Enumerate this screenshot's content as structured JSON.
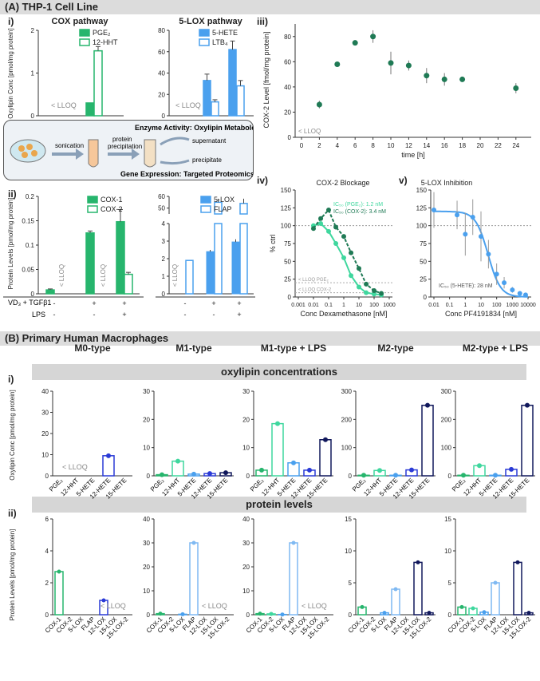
{
  "colors": {
    "green": "#27b56d",
    "mint": "#3fd79e",
    "blue": "#4aa0ee",
    "lblue": "#7fb9f2",
    "dblue": "#2a3ad6",
    "navy": "#11185c",
    "teal": "#1f7a55",
    "gray": "#999999"
  },
  "sectionA": {
    "title": "(A) THP-1 Cell Line",
    "panel_i": "i)",
    "panel_ii": "ii)",
    "panel_iii": "iii)",
    "panel_iv": "iv)",
    "panel_v": "v)"
  },
  "sectionB": {
    "title": "(B) Primary Human Macrophages",
    "panel_i": "i)",
    "panel_ii": "ii)",
    "band_oxy": "oxylipin concentrations",
    "band_prot": "protein levels"
  },
  "workflow": {
    "title1": "Enzyme Activity: Oxylipin Metabolomics",
    "title2": "Gene Expression: Targeted Proteomics",
    "step1": "sonication",
    "step2a": "protein",
    "step2b": "precipitation",
    "supernatant": "supernatant",
    "precipitate": "precipitate"
  },
  "treatment": {
    "vd3": "VD₃ + TGFβ1",
    "lps": "LPS",
    "vd3_vals": [
      "-",
      "+",
      "+"
    ],
    "lps_vals": [
      "-",
      "-",
      "+"
    ],
    "vd3_vals2": [
      "-",
      "+",
      "+"
    ],
    "lps_vals2": [
      "-",
      "-",
      "+"
    ]
  },
  "chart_data": [
    {
      "id": "Ai_cox",
      "type": "bar",
      "title": "COX pathway",
      "ylabel": "Oxylipin Conc [pmol/mg protein]",
      "ylim": [
        0,
        2
      ],
      "yticks": [
        0,
        1,
        2
      ],
      "series": [
        {
          "name": "PGE₂",
          "values": [
            0,
            0.3
          ]
        },
        {
          "name": "12-HHT",
          "values": [
            0,
            1.52
          ]
        }
      ],
      "errors": [
        [
          0,
          0
        ],
        [
          0,
          0.1
        ]
      ],
      "groups": [
        "-",
        "+"
      ],
      "lloq": "< LLOQ"
    },
    {
      "id": "Ai_lox",
      "type": "bar",
      "title": "5-LOX pathway",
      "ylim": [
        0,
        80
      ],
      "yticks": [
        0,
        20,
        40,
        60,
        80
      ],
      "series": [
        {
          "name": "5-HETE",
          "values": [
            0,
            33,
            62
          ]
        },
        {
          "name": "LTB₄",
          "values": [
            0,
            13,
            28
          ]
        }
      ],
      "errors": [
        [
          0,
          6,
          8
        ],
        [
          0,
          2,
          5
        ]
      ],
      "lloq": "< LLOQ"
    },
    {
      "id": "Aii_cox",
      "type": "bar",
      "ylabel": "Protein Levels [pmol/mg protein]",
      "ylim": [
        0,
        0.2
      ],
      "yticks": [
        0,
        0.05,
        0.1,
        0.15,
        0.2
      ],
      "series": [
        {
          "name": "COX-1",
          "values": [
            0.008,
            0.125,
            0.148
          ]
        },
        {
          "name": "COX-2",
          "values": [
            0,
            0,
            0.04
          ]
        }
      ],
      "errors": [
        [
          0.002,
          0.004,
          0.025
        ],
        [
          0,
          0,
          0.004
        ]
      ],
      "lloq": "< LLOQ"
    },
    {
      "id": "Aii_lox",
      "type": "bar",
      "ylim": [
        0,
        60
      ],
      "yticks_low": [
        0,
        1,
        2,
        3,
        4
      ],
      "yticks_high": [
        50,
        60
      ],
      "series": [
        {
          "name": "5-LOX",
          "values": [
            0,
            2.4,
            2.95
          ]
        },
        {
          "name": "FLAP",
          "values": [
            1.9,
            55,
            54
          ]
        }
      ],
      "errors": [
        [
          0,
          0.1,
          0.15
        ],
        [
          0.2,
          3,
          4
        ]
      ],
      "lloq": "< LLOQ"
    },
    {
      "id": "Aiii",
      "type": "scatter",
      "ylabel": "COX-2 Level [fmol/mg protein]",
      "xlabel": "time [h]",
      "xlim": [
        0,
        25
      ],
      "ylim": [
        0,
        90
      ],
      "xticks": [
        0,
        2,
        4,
        6,
        8,
        10,
        12,
        14,
        16,
        18,
        20,
        22,
        24
      ],
      "yticks": [
        0,
        20,
        40,
        60,
        80
      ],
      "x": [
        2,
        4,
        6,
        8,
        10,
        12,
        14,
        16,
        18,
        24
      ],
      "y": [
        26,
        58,
        75,
        80,
        59,
        57,
        49,
        46,
        46,
        39
      ],
      "err": [
        3,
        2,
        2,
        5,
        9,
        4,
        6,
        5,
        0,
        4
      ],
      "lloq": "< LLOQ"
    },
    {
      "id": "Aiv",
      "type": "line",
      "title": "COX-2 Blockage",
      "ylabel": "% ctrl",
      "xlabel": "Conc Dexamethasone [nM]",
      "xlim": [
        0.001,
        1000
      ],
      "ylim": [
        0,
        150
      ],
      "yticks": [
        0,
        25,
        50,
        75,
        100,
        125,
        150
      ],
      "xticks": [
        "0.001",
        "0.01",
        "0.1",
        "1",
        "10",
        "100",
        "1000"
      ],
      "ic50_pge2": "IC₅₀ (PGE₂): 1.2 nM",
      "ic50_cox2": "IC₅₀ (COX-2): 3.4 nM",
      "lloq_pge2": "< LLOQ PGE₂",
      "lloq_cox2": "< LLOQ COX-2",
      "series": [
        {
          "name": "PGE2",
          "x": [
            0.01,
            0.03,
            0.1,
            0.3,
            1,
            3,
            10,
            30,
            100,
            300
          ],
          "y": [
            100,
            103,
            92,
            75,
            55,
            30,
            14,
            6,
            4,
            3
          ]
        },
        {
          "name": "COX-2",
          "x": [
            0.01,
            0.03,
            0.1,
            0.3,
            1,
            3,
            10,
            30,
            100,
            300
          ],
          "y": [
            96,
            110,
            122,
            98,
            85,
            62,
            40,
            18,
            9,
            5
          ]
        }
      ]
    },
    {
      "id": "Av",
      "type": "line",
      "title": "5-LOX Inhibition",
      "xlabel": "Conc PF4191834 [nM]",
      "xlim": [
        0.01,
        10000
      ],
      "ylim": [
        0,
        150
      ],
      "yticks": [
        0,
        25,
        50,
        75,
        100,
        125,
        150
      ],
      "xticks": [
        "0.01",
        "0.1",
        "1",
        "10",
        "100",
        "1000",
        "10000"
      ],
      "ic50": "IC₅₀ (5-HETE): 28 nM",
      "x": [
        0.01,
        0.3,
        1,
        3,
        10,
        30,
        100,
        300,
        1000,
        3000,
        7000
      ],
      "y": [
        122,
        115,
        88,
        112,
        85,
        60,
        32,
        20,
        10,
        5,
        3
      ],
      "err": [
        25,
        20,
        30,
        25,
        35,
        20,
        15,
        8,
        4,
        3,
        2
      ]
    },
    {
      "id": "Bi",
      "type": "bar",
      "titles": [
        "M0-type",
        "M1-type",
        "M1-type + LPS",
        "M2-type",
        "M2-type + LPS"
      ],
      "categories": [
        "PGE₂",
        "12-HHT",
        "5-HETE",
        "12-HETE",
        "15-HETE"
      ],
      "ylabel": "Oxylipin Conc [pmol/mg protein]",
      "ylims": [
        40,
        30,
        30,
        300,
        300
      ],
      "means": [
        [
          0,
          0,
          0,
          9.5,
          0
        ],
        [
          0.4,
          5.2,
          0.6,
          0.8,
          1.1
        ],
        [
          2.0,
          18.5,
          4.6,
          2.0,
          12.8
        ],
        [
          2.0,
          19,
          2.0,
          21,
          250
        ],
        [
          2.0,
          36,
          2.0,
          23,
          250
        ]
      ],
      "lloq": "< LLOQ"
    },
    {
      "id": "Bii",
      "type": "bar",
      "categories": [
        "COX-1",
        "COX-2",
        "5-LOX",
        "FLAP",
        "12-LOX",
        "15-LOX",
        "15-LOX-2"
      ],
      "ylabel": "Protein Levels [pmol/mg protein]",
      "ylims": [
        6,
        40,
        40,
        15,
        15
      ],
      "means": [
        [
          2.7,
          0,
          0,
          0,
          0.9,
          0,
          0
        ],
        [
          0.45,
          0,
          0.2,
          30,
          0,
          0,
          0
        ],
        [
          0.45,
          0.35,
          0.1,
          30,
          0,
          0,
          0
        ],
        [
          1.2,
          0,
          0.3,
          4,
          0,
          8.2,
          0.3
        ],
        [
          1.2,
          1.0,
          0.4,
          5,
          0,
          8.2,
          0.3
        ]
      ],
      "lloq": "< LLOQ"
    }
  ]
}
